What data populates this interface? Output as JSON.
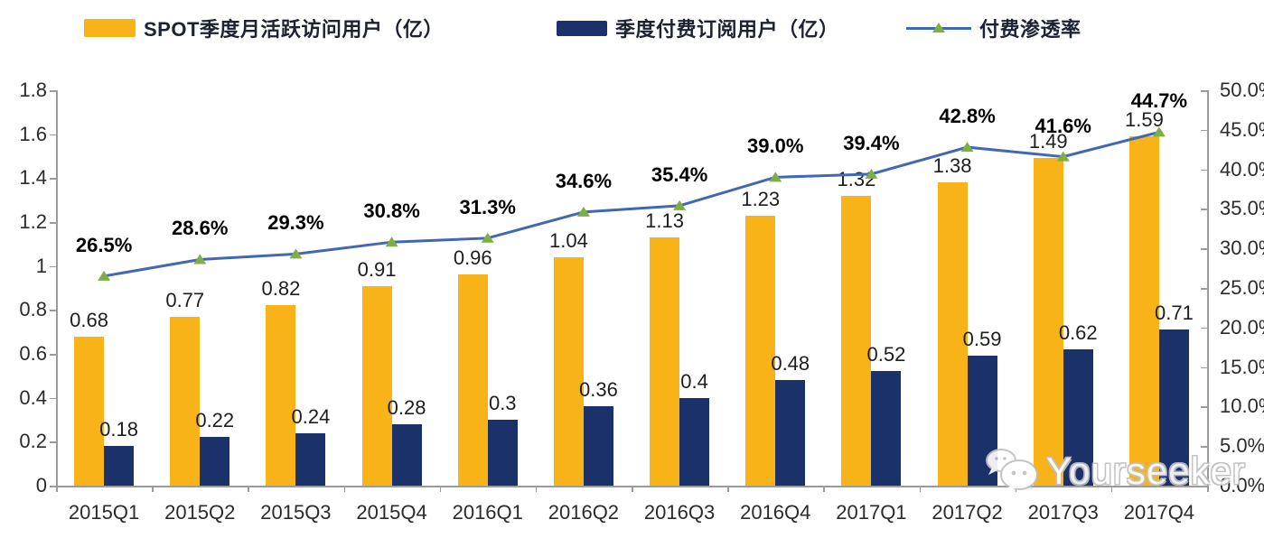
{
  "watermark": {
    "text": "Yourseeker",
    "icon": "wechat-bubbles-icon"
  },
  "chart_data": {
    "type": "bar+line",
    "categories": [
      "2015Q1",
      "2015Q2",
      "2015Q3",
      "2015Q4",
      "2016Q1",
      "2016Q2",
      "2016Q3",
      "2016Q4",
      "2017Q1",
      "2017Q2",
      "2017Q3",
      "2017Q4"
    ],
    "series": [
      {
        "name": "SPOT季度月活跃访问用户（亿）",
        "type": "bar",
        "axis": "left",
        "color": "#f7b318",
        "values": [
          0.68,
          0.77,
          0.82,
          0.91,
          0.96,
          1.04,
          1.13,
          1.23,
          1.32,
          1.38,
          1.49,
          1.59
        ],
        "labels": [
          "0.68",
          "0.77",
          "0.82",
          "0.91",
          "0.96",
          "1.04",
          "1.13",
          "1.23",
          "1.32",
          "1.38",
          "1.49",
          "1.59"
        ]
      },
      {
        "name": "季度付费订阅用户（亿）",
        "type": "bar",
        "axis": "left",
        "color": "#1b3169",
        "values": [
          0.18,
          0.22,
          0.24,
          0.28,
          0.3,
          0.36,
          0.4,
          0.48,
          0.52,
          0.59,
          0.62,
          0.71
        ],
        "labels": [
          "0.18",
          "0.22",
          "0.24",
          "0.28",
          "0.3",
          "0.36",
          "0.4",
          "0.48",
          "0.52",
          "0.59",
          "0.62",
          "0.71"
        ]
      },
      {
        "name": "付费渗透率",
        "type": "line",
        "axis": "right",
        "color": "#4169b2",
        "marker_color": "#7faf44",
        "values": [
          26.5,
          28.6,
          29.3,
          30.8,
          31.3,
          34.6,
          35.4,
          39.0,
          39.4,
          42.8,
          41.6,
          44.7
        ],
        "labels": [
          "26.5%",
          "28.6%",
          "29.3%",
          "30.8%",
          "31.3%",
          "34.6%",
          "35.4%",
          "39.0%",
          "39.4%",
          "42.8%",
          "41.6%",
          "44.7%"
        ]
      }
    ],
    "left_axis": {
      "min": 0,
      "max": 1.8,
      "step": 0.2,
      "ticks": [
        "0",
        "0.2",
        "0.4",
        "0.6",
        "0.8",
        "1",
        "1.2",
        "1.4",
        "1.6",
        "1.8"
      ]
    },
    "right_axis": {
      "min": 0,
      "max": 50,
      "step": 5,
      "ticks": [
        "0.0%",
        "5.0%",
        "10.0%",
        "15.0%",
        "20.0%",
        "25.0%",
        "30.0%",
        "35.0%",
        "40.0%",
        "45.0%",
        "50.0%"
      ]
    },
    "grid": false,
    "legend_position": "top"
  }
}
